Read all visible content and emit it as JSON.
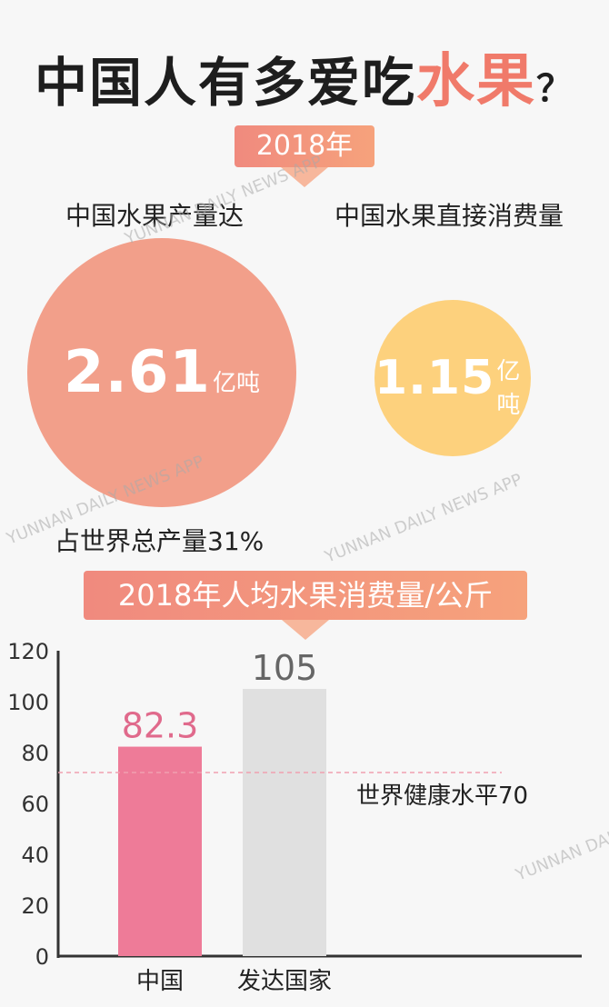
{
  "title": {
    "main": "中国人有多爱吃",
    "highlight": "水果",
    "mark": "？"
  },
  "section1": {
    "banner": "2018年",
    "production_label": "中国水果产量达",
    "consumption_label": "中国水果直接消费量",
    "production_value": "2.61",
    "production_unit": "亿吨",
    "consumption_value": "1.15",
    "consumption_unit": "亿吨",
    "share_note": "占世界总产量31%"
  },
  "section2": {
    "banner": "2018年人均水果消费量/公斤"
  },
  "watermark": {
    "text": "YUNNAN DAILY NEWS APP"
  },
  "colors": {
    "production_circle": "#f29f8a",
    "consumption_circle": "#fdd17d",
    "china_bar": "#ee7b98",
    "developed_bar": "#e0e0e0",
    "reference_line": "#f0a0b0"
  },
  "chart_data": {
    "type": "bar",
    "categories": [
      "中国",
      "发达国家"
    ],
    "values": [
      82.3,
      105
    ],
    "value_labels": [
      "82.3",
      "105"
    ],
    "yticks": [
      0,
      20,
      40,
      60,
      80,
      100,
      120
    ],
    "ylim": [
      0,
      120
    ],
    "reference_line": {
      "value": 70,
      "label": "世界健康水平70"
    },
    "grid": false
  }
}
